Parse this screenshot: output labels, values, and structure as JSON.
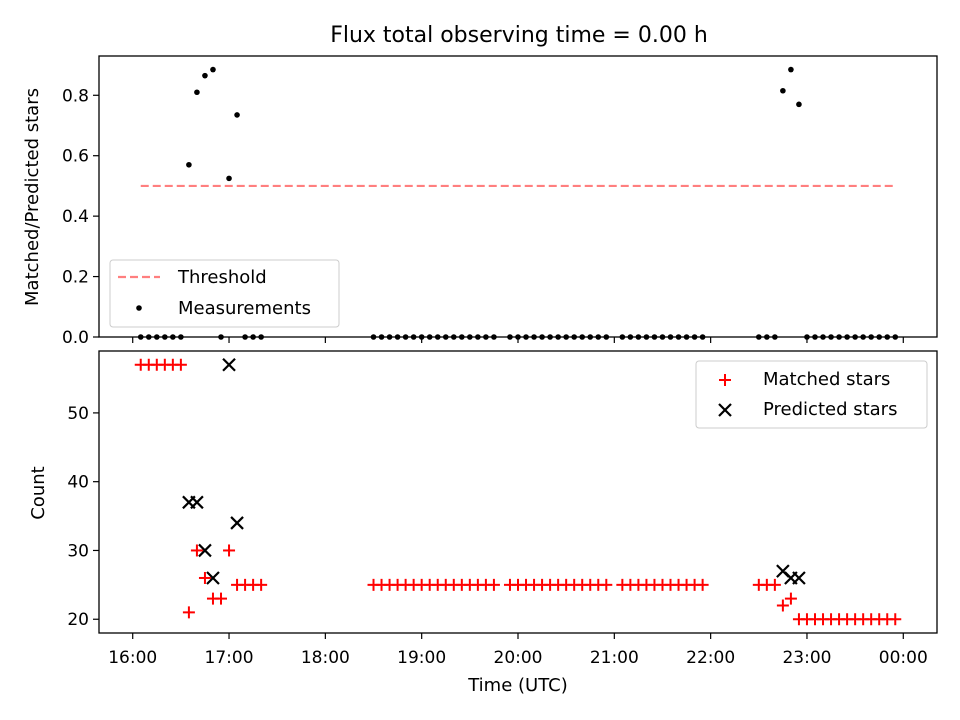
{
  "title": "Flux total observing time = 0.00 h",
  "colors": {
    "threshold": "#ff7f7f",
    "measurement": "#000000",
    "matched": "#ff0000",
    "predicted": "#000000"
  },
  "chart_data": [
    {
      "type": "scatter",
      "ylabel": "Matched/Predicted stars",
      "ylim": [
        0,
        0.93
      ],
      "yticks": [
        "0.0",
        "0.2",
        "0.4",
        "0.6",
        "0.8"
      ],
      "xlim": [
        "15:39",
        "00:21"
      ],
      "x_shared_with_lower_panel": true,
      "legend_location": "lower-left",
      "threshold": {
        "name": "Threshold",
        "value": 0.5,
        "x_range": [
          "16:05",
          "23:55"
        ],
        "style": "dashed"
      },
      "measurements": {
        "name": "Measurements",
        "x": [
          "16:05",
          "16:10",
          "16:15",
          "16:20",
          "16:25",
          "16:30",
          "16:35",
          "16:40",
          "16:45",
          "16:50",
          "16:55",
          "17:00",
          "17:05",
          "17:10",
          "17:15",
          "17:20",
          "18:30",
          "18:35",
          "18:40",
          "18:45",
          "18:50",
          "18:55",
          "19:00",
          "19:05",
          "19:10",
          "19:15",
          "19:20",
          "19:25",
          "19:30",
          "19:35",
          "19:40",
          "19:45",
          "19:55",
          "20:00",
          "20:05",
          "20:10",
          "20:15",
          "20:20",
          "20:25",
          "20:30",
          "20:35",
          "20:40",
          "20:45",
          "20:50",
          "20:55",
          "21:05",
          "21:10",
          "21:15",
          "21:20",
          "21:25",
          "21:30",
          "21:35",
          "21:40",
          "21:45",
          "21:50",
          "21:55",
          "22:30",
          "22:35",
          "22:40",
          "22:45",
          "22:50",
          "22:55",
          "23:00",
          "23:05",
          "23:10",
          "23:15",
          "23:20",
          "23:25",
          "23:30",
          "23:35",
          "23:40",
          "23:45",
          "23:50",
          "23:55"
        ],
        "y": [
          0,
          0,
          0,
          0,
          0,
          0,
          0.57,
          0.81,
          0.865,
          0.885,
          0,
          0.525,
          0.735,
          0,
          0,
          0,
          0,
          0,
          0,
          0,
          0,
          0,
          0,
          0,
          0,
          0,
          0,
          0,
          0,
          0,
          0,
          0,
          0,
          0,
          0,
          0,
          0,
          0,
          0,
          0,
          0,
          0,
          0,
          0,
          0,
          0,
          0,
          0,
          0,
          0,
          0,
          0,
          0,
          0,
          0,
          0,
          0,
          0,
          0,
          0.815,
          0.885,
          0.77,
          0,
          0,
          0,
          0,
          0,
          0,
          0,
          0,
          0,
          0,
          0,
          0
        ]
      }
    },
    {
      "type": "scatter",
      "xlabel": "Time (UTC)",
      "ylabel": "Count",
      "ylim": [
        18,
        59
      ],
      "yticks": [
        "20",
        "30",
        "40",
        "50"
      ],
      "xticks": [
        "16:00",
        "17:00",
        "18:00",
        "19:00",
        "20:00",
        "21:00",
        "22:00",
        "23:00",
        "00:00"
      ],
      "legend_location": "upper-right",
      "series": [
        {
          "name": "Matched stars",
          "marker": "plus",
          "x": [
            "16:05",
            "16:10",
            "16:15",
            "16:20",
            "16:25",
            "16:30",
            "16:35",
            "16:40",
            "16:45",
            "16:50",
            "16:55",
            "17:00",
            "17:05",
            "17:10",
            "17:15",
            "17:20",
            "18:30",
            "18:35",
            "18:40",
            "18:45",
            "18:50",
            "18:55",
            "19:00",
            "19:05",
            "19:10",
            "19:15",
            "19:20",
            "19:25",
            "19:30",
            "19:35",
            "19:40",
            "19:45",
            "19:55",
            "20:00",
            "20:05",
            "20:10",
            "20:15",
            "20:20",
            "20:25",
            "20:30",
            "20:35",
            "20:40",
            "20:45",
            "20:50",
            "20:55",
            "21:05",
            "21:10",
            "21:15",
            "21:20",
            "21:25",
            "21:30",
            "21:35",
            "21:40",
            "21:45",
            "21:50",
            "21:55",
            "22:30",
            "22:35",
            "22:40",
            "22:45",
            "22:50",
            "22:55",
            "23:00",
            "23:05",
            "23:10",
            "23:15",
            "23:20",
            "23:25",
            "23:30",
            "23:35",
            "23:40",
            "23:45",
            "23:50",
            "23:55"
          ],
          "y": [
            57,
            57,
            57,
            57,
            57,
            57,
            21,
            30,
            26,
            23,
            23,
            30,
            25,
            25,
            25,
            25,
            25,
            25,
            25,
            25,
            25,
            25,
            25,
            25,
            25,
            25,
            25,
            25,
            25,
            25,
            25,
            25,
            25,
            25,
            25,
            25,
            25,
            25,
            25,
            25,
            25,
            25,
            25,
            25,
            25,
            25,
            25,
            25,
            25,
            25,
            25,
            25,
            25,
            25,
            25,
            25,
            25,
            25,
            25,
            22,
            23,
            20,
            20,
            20,
            20,
            20,
            20,
            20,
            20,
            20,
            20,
            20,
            20,
            20
          ]
        },
        {
          "name": "Predicted stars",
          "marker": "x",
          "x": [
            "16:35",
            "16:40",
            "16:45",
            "16:50",
            "17:00",
            "17:05",
            "22:45",
            "22:50",
            "22:55"
          ],
          "y": [
            37,
            37,
            30,
            26,
            57,
            34,
            27,
            26,
            26
          ]
        }
      ]
    }
  ]
}
